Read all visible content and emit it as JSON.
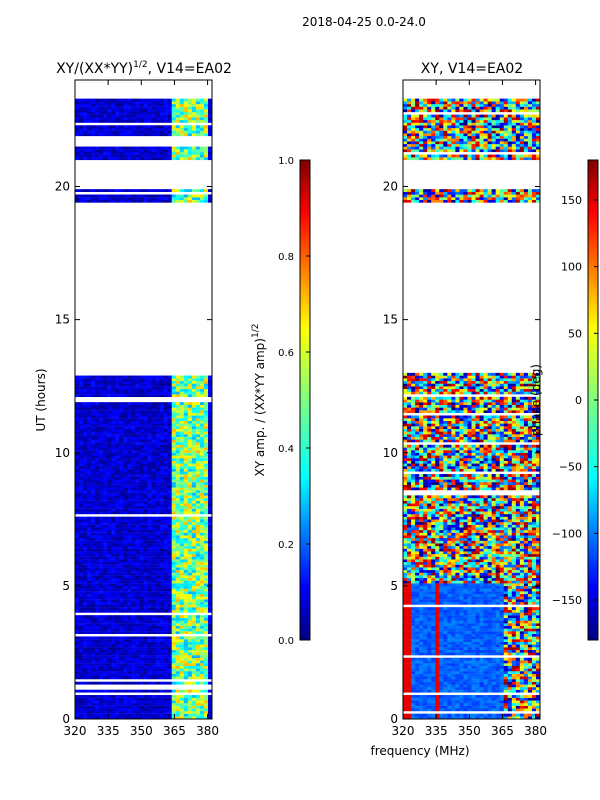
{
  "figure": {
    "suptitle": "2018-04-25 0.0-24.0",
    "xlabel": "frequency (MHz)"
  },
  "chart_data": [
    {
      "type": "heatmap",
      "title_prefix": "XY/(XX*YY)",
      "title_sup": "1/2",
      "title_suffix": ", V14=EA02",
      "xlabel": "",
      "ylabel": "UT (hours)",
      "xlim": [
        320,
        382
      ],
      "ylim": [
        0,
        24
      ],
      "xticks": [
        "320",
        "335",
        "350",
        "365",
        "380"
      ],
      "yticks": [
        "0",
        "5",
        "10",
        "15",
        "20"
      ],
      "xtick_values": [
        320,
        335,
        350,
        365,
        380
      ],
      "ytick_values": [
        0,
        5,
        10,
        15,
        20
      ],
      "colorbar": {
        "label": "XY amp. / (XX*YY amp)",
        "label_sup": "1/2",
        "range": [
          0.0,
          1.0
        ],
        "ticks": [
          "0.0",
          "0.2",
          "0.4",
          "0.6",
          "0.8",
          "1.0"
        ],
        "tick_values": [
          0.0,
          0.2,
          0.4,
          0.6,
          0.8,
          1.0
        ]
      },
      "data_ut_ranges": [
        [
          0,
          13.0
        ],
        [
          19.4,
          19.9
        ],
        [
          21.0,
          21.5
        ],
        [
          21.9,
          23.3
        ]
      ]
    },
    {
      "type": "heatmap",
      "title": "XY, V14=EA02",
      "xlabel": "frequency (MHz)",
      "ylabel": "",
      "xlim": [
        320,
        382
      ],
      "ylim": [
        0,
        24
      ],
      "xticks": [
        "320",
        "335",
        "350",
        "365",
        "380"
      ],
      "yticks": [
        "0",
        "5",
        "10",
        "15",
        "20"
      ],
      "xtick_values": [
        320,
        335,
        350,
        365,
        380
      ],
      "ytick_values": [
        0,
        5,
        10,
        15,
        20
      ],
      "colorbar": {
        "label": "phase (deg)",
        "range": [
          -180,
          180
        ],
        "ticks": [
          "−150",
          "−100",
          "−50",
          "0",
          "50",
          "100",
          "150"
        ],
        "tick_values": [
          -150,
          -100,
          -50,
          0,
          50,
          100,
          150
        ]
      },
      "data_ut_ranges": [
        [
          0,
          13.0
        ],
        [
          19.4,
          19.9
        ],
        [
          21.0,
          23.3
        ]
      ]
    }
  ],
  "colors": {
    "jet": [
      "#00007f",
      "#0000ff",
      "#007fff",
      "#00ffff",
      "#7fff7f",
      "#ffff00",
      "#ff7f00",
      "#ff0000",
      "#7f0000"
    ]
  }
}
